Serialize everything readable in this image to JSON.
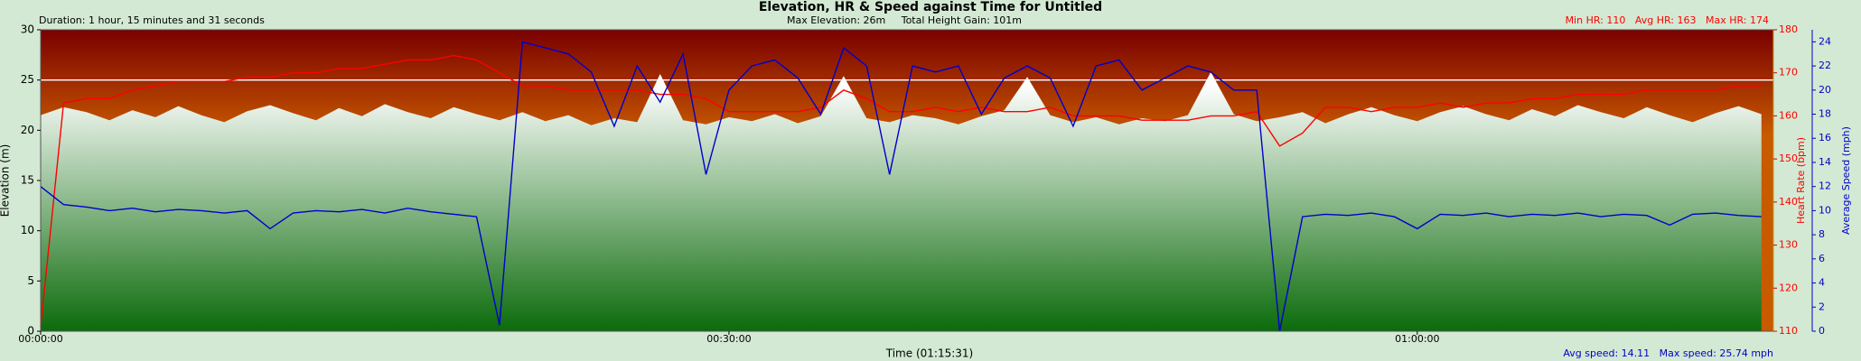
{
  "chart_data": {
    "type": "line",
    "title": "Elevation, HR & Speed against Time for Untitled",
    "annotations": {
      "duration": "Duration: 1 hour, 15 minutes and 31 seconds",
      "elevation_summary": "Max Elevation: 26m     Total Height Gain: 101m",
      "hr_summary": "Min HR: 110   Avg HR: 163   Max HR: 174",
      "speed_summary": "Avg speed: 14.11   Max speed: 25.74 mph"
    },
    "x_label": "Time (01:15:31)",
    "y_label": "Elevation (m)",
    "y2_label": "Heart Rate (bpm)",
    "y3_label": "Average Speed (mph)",
    "x": [
      0,
      1,
      2,
      3,
      4,
      5,
      6,
      7,
      8,
      9,
      10,
      11,
      12,
      13,
      14,
      15,
      16,
      17,
      18,
      19,
      20,
      21,
      22,
      23,
      24,
      25,
      26,
      27,
      28,
      29,
      30,
      31,
      32,
      33,
      34,
      35,
      36,
      37,
      38,
      39,
      40,
      41,
      42,
      43,
      44,
      45,
      46,
      47,
      48,
      49,
      50,
      51,
      52,
      53,
      54,
      55,
      56,
      57,
      58,
      59,
      60,
      61,
      62,
      63,
      64,
      65,
      66,
      67,
      68,
      69,
      70,
      71,
      72,
      73,
      74,
      75
    ],
    "xlim": [
      0,
      75.52
    ],
    "xticks": [
      {
        "value": 0,
        "label": "00:00:00"
      },
      {
        "value": 30,
        "label": "00:30:00"
      },
      {
        "value": 60,
        "label": "01:00:00"
      }
    ],
    "ylim": [
      0,
      30
    ],
    "yticks": [
      0,
      5,
      10,
      15,
      20,
      25,
      30
    ],
    "y2lim": [
      110,
      180
    ],
    "y2ticks": [
      110,
      120,
      130,
      140,
      150,
      160,
      170,
      180
    ],
    "y3lim": [
      0,
      25
    ],
    "y3ticks": [
      0,
      2,
      4,
      6,
      8,
      10,
      12,
      14,
      16,
      18,
      20,
      22,
      24
    ],
    "hline": 25,
    "series": [
      {
        "style": "area",
        "color": "#0b6b0b",
        "axis": "y",
        "values": [
          21.5,
          22.3,
          21.8,
          21,
          22,
          21.3,
          22.4,
          21.5,
          20.8,
          21.9,
          22.5,
          21.7,
          21,
          22.2,
          21.4,
          22.6,
          21.8,
          21.2,
          22.3,
          21.6,
          21,
          21.8,
          20.9,
          21.5,
          20.5,
          21.2,
          20.8,
          25.6,
          21,
          20.6,
          21.3,
          20.9,
          21.6,
          20.7,
          21.4,
          25.4,
          21.2,
          20.8,
          21.5,
          21.2,
          20.6,
          21.4,
          22,
          25.3,
          21.5,
          20.8,
          21.3,
          20.6,
          21.2,
          20.9,
          21.5,
          25.8,
          21.6,
          20.9,
          21.3,
          21.8,
          20.7,
          21.6,
          22.3,
          21.5,
          20.9,
          21.8,
          22.4,
          21.6,
          21,
          22.1,
          21.4,
          22.5,
          21.8,
          21.2,
          22.3,
          21.5,
          20.8,
          21.7,
          22.4,
          21.6
        ]
      },
      {
        "style": "line",
        "color": "#ff0000",
        "axis": "y2",
        "values": [
          111,
          163,
          164,
          164,
          166,
          167,
          168,
          168,
          168,
          169,
          169,
          170,
          170,
          171,
          171,
          172,
          173,
          173,
          174,
          173,
          170,
          167,
          167,
          166,
          166,
          166,
          166,
          165,
          165,
          164,
          161,
          161,
          161,
          161,
          162,
          166,
          164,
          161,
          161,
          162,
          161,
          162,
          161,
          161,
          162,
          160,
          160,
          160,
          159,
          159,
          159,
          160,
          160,
          161,
          153,
          156,
          162,
          162,
          161,
          162,
          162,
          163,
          162,
          163,
          163,
          164,
          164,
          165,
          165,
          165,
          166,
          166,
          166,
          166,
          167,
          167
        ]
      },
      {
        "style": "line",
        "color": "#0000cc",
        "axis": "y3",
        "values": [
          12,
          10.5,
          10.3,
          10,
          10.2,
          9.9,
          10.1,
          10,
          9.8,
          10,
          8.5,
          9.8,
          10,
          9.9,
          10.1,
          9.8,
          10.2,
          9.9,
          9.7,
          9.5,
          0.5,
          24,
          23.5,
          23,
          21.5,
          17,
          22,
          19,
          23,
          13,
          20,
          22,
          22.5,
          21,
          18,
          23.5,
          22,
          13,
          22,
          21.5,
          22,
          18,
          21,
          22,
          21,
          17,
          22,
          22.5,
          20,
          21,
          22,
          21.5,
          20,
          20,
          0,
          9.5,
          9.7,
          9.6,
          9.8,
          9.5,
          8.5,
          9.7,
          9.6,
          9.8,
          9.5,
          9.7,
          9.6,
          9.8,
          9.5,
          9.7,
          9.6,
          8.8,
          9.7,
          9.8,
          9.6,
          9.5
        ]
      }
    ]
  }
}
